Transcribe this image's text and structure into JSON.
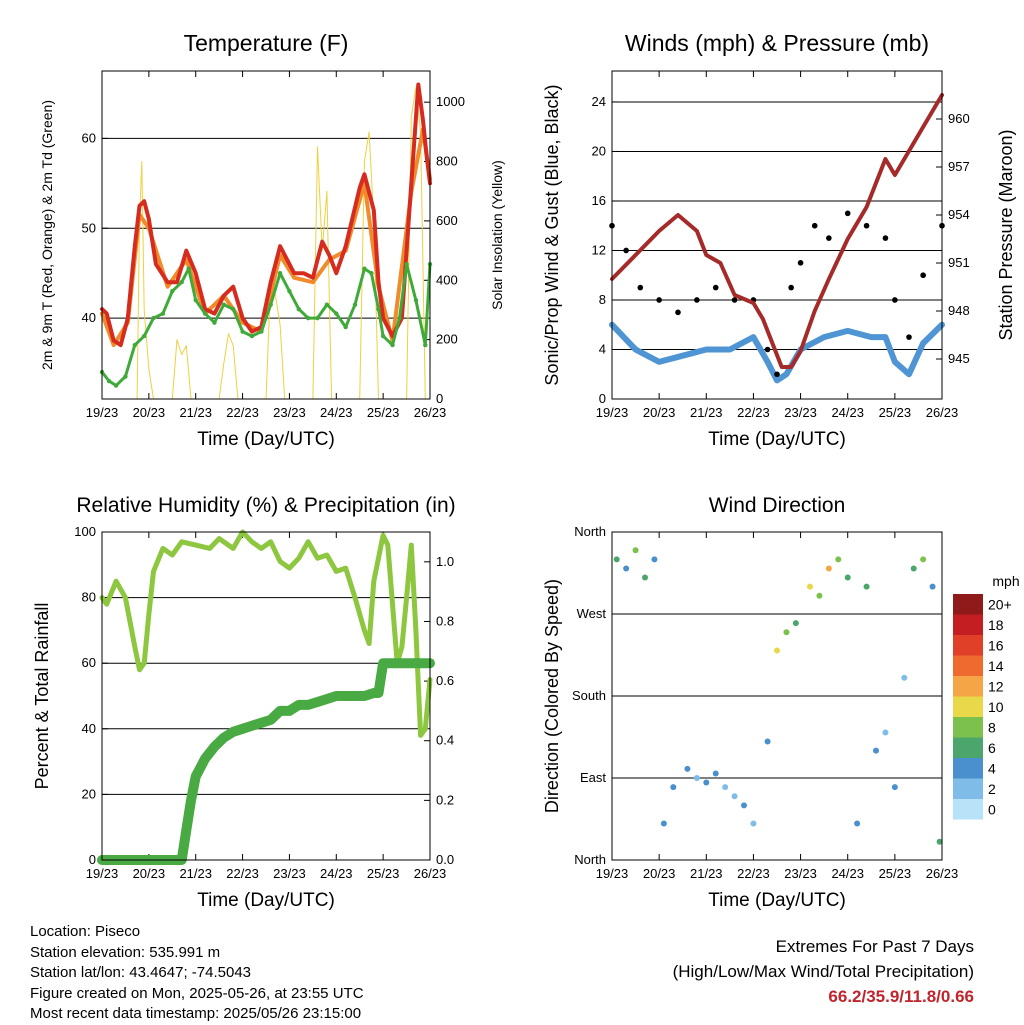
{
  "chart_data": [
    {
      "id": "temperature",
      "type": "line",
      "title": "Temperature (F)",
      "xlabel": "Time (Day/UTC)",
      "ylabel": "2m & 9m T (Red, Orange) & 2m Td (Green)",
      "y2label": "Solar Insolation (Yellow)",
      "x_ticks": [
        "19/23",
        "20/23",
        "21/23",
        "22/23",
        "23/23",
        "24/23",
        "25/23",
        "26/23"
      ],
      "xlim": [
        0,
        7
      ],
      "ylim": [
        31,
        67.5
      ],
      "y_ticks": [
        "40",
        "50",
        "60"
      ],
      "y2lim": [
        0,
        1105
      ],
      "y2_ticks": [
        "0",
        "200",
        "400",
        "600",
        "800",
        "1000"
      ],
      "grid": "horizontal",
      "series": [
        {
          "color": "#d62b1f",
          "x": [
            0,
            0.1,
            0.25,
            0.4,
            0.55,
            0.7,
            0.8,
            0.9,
            1.0,
            1.15,
            1.4,
            1.6,
            1.8,
            2.0,
            2.2,
            2.4,
            2.6,
            2.8,
            3.0,
            3.2,
            3.4,
            3.6,
            3.8,
            3.95,
            4.1,
            4.3,
            4.5,
            4.7,
            4.85,
            5.0,
            5.2,
            5.5,
            5.6,
            5.8,
            5.9,
            6.0,
            6.2,
            6.4,
            6.6,
            6.75,
            6.85,
            6.93,
            7.0
          ],
          "values": [
            41,
            40.5,
            37.5,
            37,
            40,
            48,
            52.5,
            53,
            51,
            46,
            44,
            44,
            47.5,
            45,
            41,
            40.5,
            42.5,
            43.5,
            40,
            38.5,
            39,
            44,
            48,
            46.5,
            45,
            45,
            44.5,
            48.5,
            47,
            45,
            48,
            54.5,
            56,
            52,
            44,
            40,
            38,
            40,
            55,
            66,
            62,
            58,
            55
          ]
        },
        {
          "color": "#f08a2a",
          "x": [
            0,
            0.25,
            0.55,
            0.8,
            1.0,
            1.4,
            1.8,
            2.2,
            2.6,
            3.0,
            3.4,
            3.8,
            4.1,
            4.5,
            4.85,
            5.2,
            5.6,
            5.9,
            6.2,
            6.6,
            6.85,
            7.0
          ],
          "values": [
            40.5,
            37,
            39.5,
            51.5,
            50,
            43.5,
            46.5,
            40.5,
            42.5,
            39.5,
            38.5,
            47,
            44.5,
            44,
            46.5,
            47.5,
            55,
            43.5,
            37.5,
            54,
            61,
            55.5
          ]
        },
        {
          "color": "#3faa3a",
          "marker": "dot",
          "x": [
            0,
            0.15,
            0.3,
            0.5,
            0.7,
            0.9,
            1.1,
            1.3,
            1.5,
            1.7,
            1.85,
            2.0,
            2.2,
            2.4,
            2.6,
            2.8,
            3.0,
            3.2,
            3.4,
            3.6,
            3.8,
            4.0,
            4.2,
            4.4,
            4.6,
            4.8,
            5.0,
            5.2,
            5.4,
            5.6,
            5.75,
            5.9,
            6.0,
            6.2,
            6.35,
            6.5,
            6.7,
            6.9,
            7.0
          ],
          "values": [
            34,
            33,
            32.5,
            33.5,
            37,
            38,
            40,
            40.5,
            43,
            44,
            45.5,
            42,
            40.5,
            39.5,
            41.5,
            41,
            38.5,
            38,
            38.5,
            41.5,
            45,
            43,
            41,
            40,
            40,
            41.5,
            40.5,
            39,
            41.5,
            45.5,
            45,
            41,
            38,
            37,
            40,
            46,
            42,
            37,
            46
          ]
        },
        {
          "color": "#f0d040",
          "name": "",
          "x": [
            0.75,
            0.8,
            0.85,
            0.9,
            1.0,
            1.1,
            1.5,
            1.6,
            1.7,
            1.8,
            1.9,
            2.5,
            2.6,
            2.7,
            2.8,
            2.9,
            3.5,
            3.6,
            3.7,
            3.8,
            3.9,
            4.5,
            4.6,
            4.7,
            4.8,
            4.9,
            5.5,
            5.6,
            5.7,
            5.8,
            5.9,
            6.5,
            6.6,
            6.7,
            6.8,
            6.9
          ],
          "values": [
            0,
            600,
            800,
            300,
            100,
            0,
            0,
            200,
            150,
            180,
            0,
            0,
            120,
            220,
            180,
            0,
            0,
            400,
            350,
            250,
            0,
            0,
            850,
            500,
            700,
            0,
            0,
            800,
            900,
            600,
            0,
            0,
            950,
            1050,
            900,
            0
          ]
        }
      ]
    },
    {
      "id": "winds",
      "type": "scatter",
      "title": "Winds (mph) & Pressure (mb)",
      "xlabel": "Time (Day/UTC)",
      "ylabel": "Sonic/Prop Wind & Gust (Blue, Black)",
      "y2label": "Station Pressure (Maroon)",
      "x_ticks": [
        "19/23",
        "20/23",
        "21/23",
        "22/23",
        "23/23",
        "24/23",
        "25/23",
        "26/23"
      ],
      "xlim": [
        0,
        7
      ],
      "ylim": [
        0,
        26.5
      ],
      "y_ticks": [
        "0",
        "4",
        "8",
        "12",
        "16",
        "20",
        "24"
      ],
      "y2lim": [
        942.5,
        963
      ],
      "y2_ticks": [
        "945",
        "948",
        "951",
        "954",
        "957",
        "960"
      ],
      "grid": "horizontal",
      "series": [
        {
          "color": "#4f95d4",
          "x": [
            0,
            0.5,
            1.0,
            1.5,
            2.0,
            2.5,
            3.0,
            3.3,
            3.5,
            3.7,
            4.0,
            4.5,
            5.0,
            5.5,
            5.8,
            6.0,
            6.3,
            6.6,
            7.0
          ],
          "values": [
            6,
            4,
            3,
            3.5,
            4,
            4,
            5,
            3,
            1.5,
            2,
            4,
            5,
            5.5,
            5,
            5,
            3,
            2,
            4.5,
            6
          ]
        },
        {
          "color": "#000000",
          "marker": "dot",
          "x": [
            0,
            0.3,
            0.6,
            1.0,
            1.4,
            1.8,
            2.2,
            2.6,
            3.0,
            3.3,
            3.5,
            3.8,
            4.0,
            4.3,
            4.6,
            5.0,
            5.4,
            5.8,
            6.0,
            6.3,
            6.6,
            7.0
          ],
          "values": [
            14,
            12,
            9,
            8,
            7,
            8,
            9,
            8,
            8,
            4,
            2,
            9,
            11,
            14,
            13,
            15,
            14,
            13,
            8,
            5,
            10,
            14
          ]
        },
        {
          "color": "#a52a2a",
          "name": "",
          "x": [
            0,
            0.5,
            1.0,
            1.4,
            1.8,
            2.0,
            2.3,
            2.6,
            3.0,
            3.2,
            3.4,
            3.6,
            3.8,
            4.0,
            4.3,
            4.6,
            5.0,
            5.4,
            5.8,
            6.0,
            6.3,
            6.6,
            7.0
          ],
          "values": [
            950,
            951.5,
            953,
            954,
            953,
            951.5,
            951,
            949,
            948.5,
            947.5,
            946,
            944.5,
            944.5,
            945.5,
            948,
            950,
            952.5,
            954.5,
            957.5,
            956.5,
            958,
            959.5,
            961.5
          ]
        }
      ]
    },
    {
      "id": "humidity",
      "type": "line",
      "title": "Relative Humidity (%) & Precipitation (in)",
      "xlabel": "Time (Day/UTC)",
      "ylabel": "Percent & Total Rainfall",
      "x_ticks": [
        "19/23",
        "20/23",
        "21/23",
        "22/23",
        "23/23",
        "24/23",
        "25/23",
        "26/23"
      ],
      "xlim": [
        0,
        7
      ],
      "ylim": [
        0,
        100
      ],
      "y_ticks": [
        "0",
        "20",
        "40",
        "60",
        "80",
        "100"
      ],
      "y2lim": [
        0,
        1.1
      ],
      "y2_ticks": [
        "0.0",
        "0.2",
        "0.4",
        "0.6",
        "0.8",
        "1.0"
      ],
      "grid": "horizontal",
      "series": [
        {
          "color": "#8dc63f",
          "x": [
            0,
            0.1,
            0.3,
            0.5,
            0.7,
            0.8,
            0.9,
            1.0,
            1.1,
            1.3,
            1.5,
            1.7,
            2.0,
            2.3,
            2.5,
            2.8,
            3.0,
            3.2,
            3.4,
            3.6,
            3.8,
            4.0,
            4.2,
            4.4,
            4.6,
            4.8,
            5.0,
            5.2,
            5.4,
            5.6,
            5.7,
            5.8,
            6.0,
            6.1,
            6.3,
            6.4,
            6.5,
            6.6,
            6.7,
            6.8,
            6.9,
            7.0
          ],
          "values": [
            80,
            78,
            85,
            80,
            65,
            58,
            60,
            75,
            88,
            95,
            93,
            97,
            96,
            95,
            98,
            95,
            100,
            97,
            95,
            97,
            91,
            89,
            92,
            97,
            92,
            93,
            88,
            89,
            80,
            70,
            66,
            85,
            99,
            96,
            60,
            65,
            80,
            96,
            70,
            38,
            40,
            55
          ]
        },
        {
          "color": "#49a942",
          "x": [
            0,
            0.5,
            1.0,
            1.5,
            1.7,
            1.8,
            1.9,
            2.0,
            2.1,
            2.2,
            2.4,
            2.6,
            2.8,
            3.0,
            3.2,
            3.4,
            3.6,
            3.8,
            4.0,
            4.2,
            4.4,
            4.6,
            4.8,
            5.0,
            5.2,
            5.4,
            5.6,
            5.8,
            5.9,
            6.0,
            6.3,
            6.6,
            7.0
          ],
          "values": [
            0,
            0,
            0,
            0,
            0,
            0.1,
            0.2,
            0.28,
            0.31,
            0.34,
            0.38,
            0.41,
            0.43,
            0.44,
            0.45,
            0.46,
            0.47,
            0.5,
            0.5,
            0.52,
            0.52,
            0.53,
            0.54,
            0.55,
            0.55,
            0.55,
            0.55,
            0.56,
            0.56,
            0.66,
            0.66,
            0.66,
            0.66
          ]
        }
      ]
    },
    {
      "id": "direction",
      "type": "scatter",
      "title": "Wind Direction",
      "xlabel": "Time (Day/UTC)",
      "ylabel": "Direction (Colored By Speed)",
      "x_ticks": [
        "19/23",
        "20/23",
        "21/23",
        "22/23",
        "23/23",
        "24/23",
        "25/23",
        "26/23"
      ],
      "xlim": [
        0,
        7
      ],
      "ylim": [
        0,
        360
      ],
      "y_ticks": [
        "North",
        "East",
        "South",
        "West",
        "North"
      ],
      "grid": "horizontal",
      "legend": {
        "title": "mph",
        "position": "right",
        "labels": [
          "0",
          "2",
          "4",
          "6",
          "8",
          "10",
          "12",
          "14",
          "16",
          "18",
          "20+"
        ],
        "colors": [
          "#b8e2f8",
          "#7fbde8",
          "#4a8fce",
          "#4aa66a",
          "#7cc04e",
          "#e8d84a",
          "#f6a546",
          "#ef6a2e",
          "#e04028",
          "#c41e22",
          "#8e1a1a"
        ]
      },
      "points": [
        {
          "x": 0.1,
          "dir": 330,
          "spd": 6
        },
        {
          "x": 0.3,
          "dir": 320,
          "spd": 4
        },
        {
          "x": 0.5,
          "dir": 340,
          "spd": 8
        },
        {
          "x": 0.7,
          "dir": 310,
          "spd": 6
        },
        {
          "x": 0.9,
          "dir": 330,
          "spd": 4
        },
        {
          "x": 1.1,
          "dir": 40,
          "spd": 4
        },
        {
          "x": 1.3,
          "dir": 80,
          "spd": 4
        },
        {
          "x": 1.6,
          "dir": 100,
          "spd": 4
        },
        {
          "x": 1.8,
          "dir": 90,
          "spd": 2
        },
        {
          "x": 2.0,
          "dir": 85,
          "spd": 4
        },
        {
          "x": 2.2,
          "dir": 95,
          "spd": 4
        },
        {
          "x": 2.4,
          "dir": 80,
          "spd": 2
        },
        {
          "x": 2.6,
          "dir": 70,
          "spd": 2
        },
        {
          "x": 2.8,
          "dir": 60,
          "spd": 4
        },
        {
          "x": 3.0,
          "dir": 40,
          "spd": 2
        },
        {
          "x": 3.3,
          "dir": 130,
          "spd": 4
        },
        {
          "x": 3.5,
          "dir": 230,
          "spd": 10
        },
        {
          "x": 3.7,
          "dir": 250,
          "spd": 8
        },
        {
          "x": 3.9,
          "dir": 260,
          "spd": 6
        },
        {
          "x": 4.2,
          "dir": 300,
          "spd": 10
        },
        {
          "x": 4.4,
          "dir": 290,
          "spd": 8
        },
        {
          "x": 4.6,
          "dir": 320,
          "spd": 12
        },
        {
          "x": 4.8,
          "dir": 330,
          "spd": 8
        },
        {
          "x": 5.0,
          "dir": 310,
          "spd": 6
        },
        {
          "x": 5.2,
          "dir": 40,
          "spd": 4
        },
        {
          "x": 5.4,
          "dir": 300,
          "spd": 6
        },
        {
          "x": 5.6,
          "dir": 120,
          "spd": 4
        },
        {
          "x": 5.8,
          "dir": 140,
          "spd": 2
        },
        {
          "x": 6.0,
          "dir": 80,
          "spd": 4
        },
        {
          "x": 6.2,
          "dir": 200,
          "spd": 2
        },
        {
          "x": 6.4,
          "dir": 320,
          "spd": 6
        },
        {
          "x": 6.6,
          "dir": 330,
          "spd": 8
        },
        {
          "x": 6.8,
          "dir": 300,
          "spd": 4
        },
        {
          "x": 6.95,
          "dir": 20,
          "spd": 6
        }
      ]
    }
  ],
  "station": {
    "location": "Location: Piseco",
    "elevation": "Station elevation: 535.991 m",
    "latlon": "Station lat/lon: 43.4647; -74.5043",
    "created": "Figure created on Mon, 2025-05-26, at 23:55 UTC",
    "latest": "Most recent data timestamp: 2025/05/26 23:15:00"
  },
  "extremes": {
    "title": "Extremes For Past 7 Days",
    "subtitle": "(High/Low/Max Wind/Total Precipitation)",
    "values": "66.2/35.9/11.8/0.66"
  }
}
